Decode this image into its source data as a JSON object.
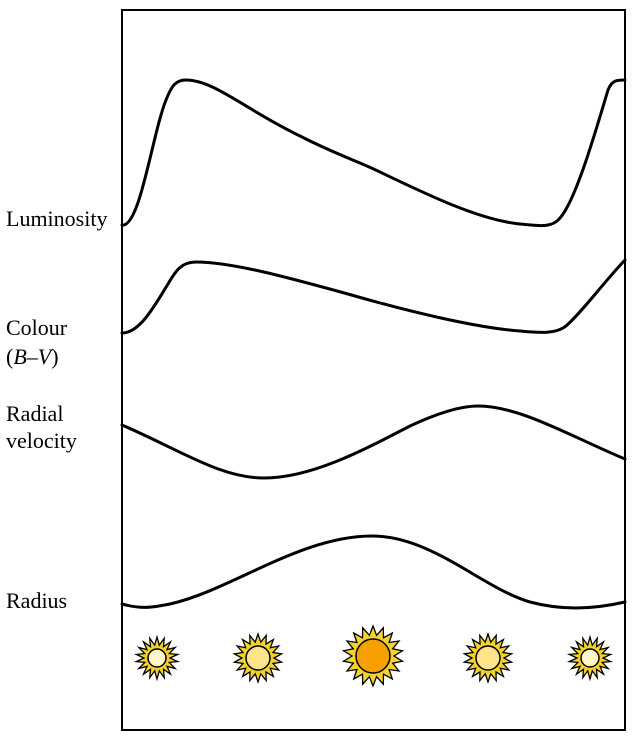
{
  "labels": {
    "luminosity": "Luminosity",
    "colour_line1": "Colour",
    "colour_line2_open": "(",
    "colour_B": "B",
    "colour_dash": "–",
    "colour_V": "V",
    "colour_line2_close": ")",
    "radial_line1": "Radial",
    "radial_line2": "velocity",
    "radius": "Radius"
  },
  "colors": {
    "line": "#000000",
    "star_small_fill": "#fff6c8",
    "star_medium_fill": "#fde38a",
    "star_large_fill": "#f5a000",
    "star_rays": "#f3d12e"
  },
  "stars": [
    {
      "name": "star-phase-1",
      "size": "small",
      "fill": "#fff6c8"
    },
    {
      "name": "star-phase-2",
      "size": "medium",
      "fill": "#fde38a"
    },
    {
      "name": "star-phase-3",
      "size": "large",
      "fill": "#f5a000"
    },
    {
      "name": "star-phase-4",
      "size": "medium",
      "fill": "#fde38a"
    },
    {
      "name": "star-phase-5",
      "size": "small",
      "fill": "#fff6c8"
    }
  ]
}
